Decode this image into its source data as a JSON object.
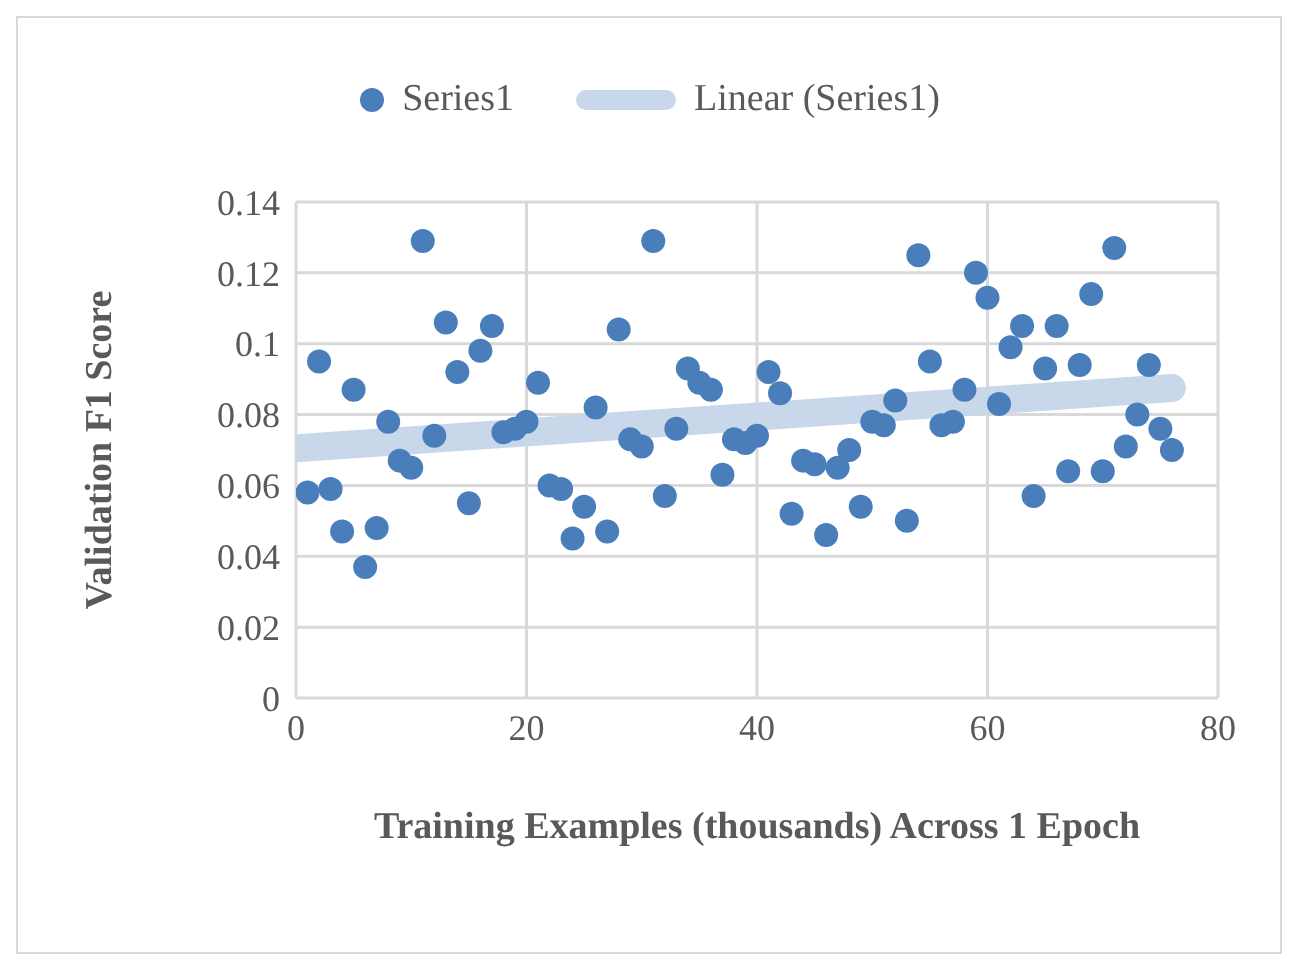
{
  "chart_data": {
    "type": "scatter",
    "xlabel": "Training Examples (thousands) Across 1 Epoch",
    "ylabel": "Validation F1 Score",
    "xlim": [
      0,
      80
    ],
    "xticks": [
      0,
      20,
      40,
      60,
      80
    ],
    "ylim": [
      0,
      0.14
    ],
    "yticks": [
      0,
      0.02,
      0.04,
      0.06,
      0.08,
      0.1,
      0.12,
      0.14
    ],
    "grid": true,
    "legend": "top",
    "series": [
      {
        "name": "Series1",
        "marker": "circle",
        "color": "#4a7ebb",
        "x": [
          1,
          2,
          3,
          4,
          5,
          6,
          7,
          8,
          9,
          10,
          11,
          12,
          13,
          14,
          15,
          16,
          17,
          18,
          19,
          20,
          21,
          22,
          23,
          24,
          25,
          26,
          27,
          28,
          29,
          30,
          31,
          32,
          33,
          34,
          35,
          36,
          37,
          38,
          39,
          40,
          41,
          42,
          43,
          44,
          45,
          46,
          47,
          48,
          49,
          50,
          51,
          52,
          53,
          54,
          55,
          56,
          57,
          58,
          59,
          60,
          61,
          62,
          63,
          64,
          65,
          66,
          67,
          68,
          69,
          70,
          71,
          72,
          73,
          74,
          75,
          76
        ],
        "values": [
          0.058,
          0.095,
          0.059,
          0.047,
          0.087,
          0.037,
          0.048,
          0.078,
          0.067,
          0.065,
          0.129,
          0.074,
          0.106,
          0.092,
          0.055,
          0.098,
          0.105,
          0.075,
          0.076,
          0.078,
          0.089,
          0.06,
          0.059,
          0.045,
          0.054,
          0.082,
          0.047,
          0.104,
          0.073,
          0.071,
          0.129,
          0.057,
          0.076,
          0.093,
          0.089,
          0.087,
          0.063,
          0.073,
          0.072,
          0.074,
          0.092,
          0.086,
          0.052,
          0.067,
          0.066,
          0.046,
          0.065,
          0.07,
          0.054,
          0.078,
          0.077,
          0.084,
          0.05,
          0.125,
          0.095,
          0.077,
          0.078,
          0.087,
          0.12,
          0.113,
          0.083,
          0.099,
          0.105,
          0.057,
          0.093,
          0.105,
          0.064,
          0.094,
          0.114,
          0.064,
          0.127,
          0.071,
          0.08,
          0.094,
          0.076,
          0.07
        ]
      },
      {
        "name": "Linear (Series1)",
        "type": "line",
        "marker": "none",
        "color": "#c9d7ea",
        "x": [
          0,
          76
        ],
        "values": [
          0.0705,
          0.0875
        ]
      }
    ]
  }
}
